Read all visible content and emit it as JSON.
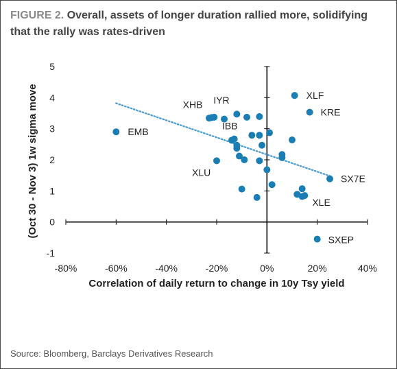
{
  "header": {
    "figure_label": "FIGURE 2.",
    "title": "Overall, assets of longer duration rallied more, solidifying that the rally was rates-driven"
  },
  "footer": {
    "source": "Source: Bloomberg, Barclays Derivatives Research"
  },
  "colors": {
    "point": "#1a7db3",
    "trendline": "#4f9fd1",
    "axis": "#000000",
    "text": "#222222"
  },
  "chart_data": {
    "type": "scatter",
    "xlabel": "Correlation of daily return to change in 10y Tsy yield",
    "ylabel": "(Oct 30 - Nov 3) 1w sigma move",
    "xlim": [
      -0.8,
      0.4
    ],
    "ylim": [
      -1,
      5
    ],
    "xticks": [
      -0.8,
      -0.6,
      -0.4,
      -0.2,
      0.0,
      0.2,
      0.4
    ],
    "xtick_labels": [
      "-80%",
      "-60%",
      "-40%",
      "-20%",
      "0%",
      "20%",
      "40%"
    ],
    "yticks": [
      -1,
      0,
      1,
      2,
      3,
      4,
      5
    ],
    "ytick_labels": [
      "-1",
      "0",
      "1",
      "2",
      "3",
      "4",
      "5"
    ],
    "grid": false,
    "legend": "none",
    "trendline": {
      "style": "dotted",
      "x": [
        -0.6,
        0.25
      ],
      "y": [
        3.82,
        1.48
      ]
    },
    "points": [
      {
        "x": -0.6,
        "y": 2.9,
        "label": "EMB"
      },
      {
        "x": -0.22,
        "y": 3.36,
        "label": "XHB"
      },
      {
        "x": -0.21,
        "y": 3.37,
        "label": "IYR"
      },
      {
        "x": -0.14,
        "y": 2.63,
        "label": "IBB"
      },
      {
        "x": -0.2,
        "y": 1.97,
        "label": "XLU"
      },
      {
        "x": 0.11,
        "y": 4.07,
        "label": "XLF"
      },
      {
        "x": 0.17,
        "y": 3.53,
        "label": "KRE"
      },
      {
        "x": 0.25,
        "y": 1.39,
        "label": "SX7E"
      },
      {
        "x": 0.15,
        "y": 0.85,
        "label": "XLE"
      },
      {
        "x": 0.2,
        "y": -0.55,
        "label": "SXEP"
      },
      {
        "x": -0.23,
        "y": 3.34,
        "label": ""
      },
      {
        "x": -0.17,
        "y": 3.31,
        "label": ""
      },
      {
        "x": -0.12,
        "y": 3.47,
        "label": ""
      },
      {
        "x": -0.08,
        "y": 3.37,
        "label": ""
      },
      {
        "x": -0.03,
        "y": 3.39,
        "label": ""
      },
      {
        "x": -0.13,
        "y": 2.67,
        "label": ""
      },
      {
        "x": -0.12,
        "y": 2.47,
        "label": ""
      },
      {
        "x": -0.12,
        "y": 2.37,
        "label": ""
      },
      {
        "x": -0.06,
        "y": 2.79,
        "label": ""
      },
      {
        "x": -0.03,
        "y": 2.79,
        "label": ""
      },
      {
        "x": -0.02,
        "y": 2.47,
        "label": ""
      },
      {
        "x": 0.01,
        "y": 2.87,
        "label": ""
      },
      {
        "x": -0.11,
        "y": 2.12,
        "label": ""
      },
      {
        "x": -0.09,
        "y": 2.0,
        "label": ""
      },
      {
        "x": -0.03,
        "y": 1.97,
        "label": ""
      },
      {
        "x": 0.0,
        "y": 1.68,
        "label": ""
      },
      {
        "x": 0.06,
        "y": 2.17,
        "label": ""
      },
      {
        "x": 0.06,
        "y": 2.07,
        "label": ""
      },
      {
        "x": 0.1,
        "y": 2.64,
        "label": ""
      },
      {
        "x": 0.02,
        "y": 1.2,
        "label": ""
      },
      {
        "x": -0.1,
        "y": 1.06,
        "label": ""
      },
      {
        "x": -0.04,
        "y": 0.79,
        "label": ""
      },
      {
        "x": 0.12,
        "y": 0.89,
        "label": ""
      },
      {
        "x": 0.14,
        "y": 1.07,
        "label": ""
      },
      {
        "x": 0.14,
        "y": 0.82,
        "label": ""
      }
    ]
  }
}
